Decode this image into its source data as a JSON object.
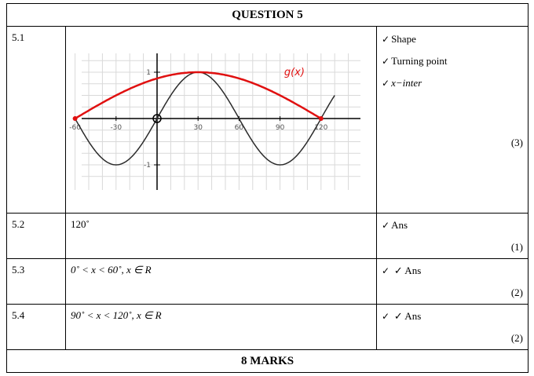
{
  "title": "QUESTION 5",
  "footer": "8 MARKS",
  "rows": [
    {
      "num": "5.1",
      "graph": {
        "curve_label": "g(x)",
        "x_ticks": [
          "-60",
          "-30",
          "30",
          "60",
          "90",
          "120"
        ],
        "y_ticks": [
          "1",
          "-1"
        ]
      },
      "marks": [
        "Shape",
        "Turning point",
        "x−inter"
      ],
      "total": "(3)"
    },
    {
      "num": "5.2",
      "answer": "120˚",
      "marks": [
        "Ans"
      ],
      "total": "(1)"
    },
    {
      "num": "5.3",
      "answer": "0˚ < x < 60˚, x ∈ R",
      "marks": [
        "✓ Ans"
      ],
      "total": "(2)"
    },
    {
      "num": "5.4",
      "answer": "90˚ < x < 120˚, x ∈ R",
      "marks": [
        "✓ Ans"
      ],
      "total": "(2)"
    }
  ],
  "chart_data": {
    "type": "line",
    "xlim": [
      -60,
      120
    ],
    "ylim": [
      -1,
      1
    ],
    "series": [
      {
        "name": "",
        "function": "sin(3x)",
        "x": [
          -60,
          -30,
          0,
          30,
          60,
          90,
          120
        ],
        "y": [
          0,
          -1,
          0,
          1,
          0,
          -1,
          0
        ],
        "color": "#2b2b2b"
      },
      {
        "name": "g(x)",
        "function": "cos(x - 30)",
        "x": [
          -60,
          -30,
          0,
          30,
          60,
          90,
          120
        ],
        "y": [
          0,
          0.5,
          0.866,
          1,
          0.866,
          0.5,
          0
        ],
        "color": "#e01010"
      }
    ]
  }
}
